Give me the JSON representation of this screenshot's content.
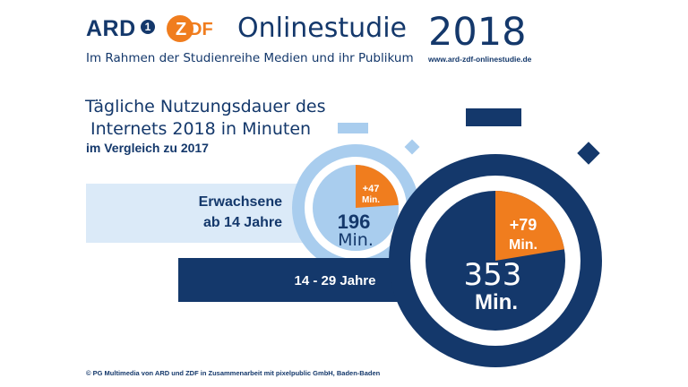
{
  "header": {
    "ard_logo": "ARD",
    "ard_one": "1",
    "zdf_logo": "ZDF",
    "title": "Onlinestudie",
    "year": "2018",
    "subline": "Im Rahmen der Studienreihe Medien und ihr Publikum",
    "url": "www.ard-zdf-onlinestudie.de"
  },
  "chart_title_line1": "Tägliche Nutzungsdauer des",
  "chart_title_line2": "Internets 2018 in Minuten",
  "chart_subtitle": "im Vergleich zu 2017",
  "footer": "© PG Multimedia von ARD und ZDF in Zusammenarbeit mit pixelpublic GmbH, Baden-Baden",
  "colors": {
    "navy": "#14386b",
    "light_blue": "#a9cdee",
    "pale_blue": "#dbeaf8",
    "orange": "#f07d1e"
  },
  "chart_data": {
    "type": "pie",
    "unit": "Min.",
    "series": [
      {
        "name": "Erwachsene ab 14 Jahre",
        "label_line1": "Erwachsene",
        "label_line2": "ab 14 Jahre",
        "total": 196,
        "total_label": "196",
        "increase": 47,
        "increase_label": "+47",
        "increase_unit": "Min.",
        "unit": "Min."
      },
      {
        "name": "14 - 29 Jahre",
        "label": "14 - 29 Jahre",
        "total": 353,
        "total_label": "353",
        "increase": 79,
        "increase_label": "+79",
        "increase_unit": "Min.",
        "unit": "Min."
      }
    ]
  }
}
